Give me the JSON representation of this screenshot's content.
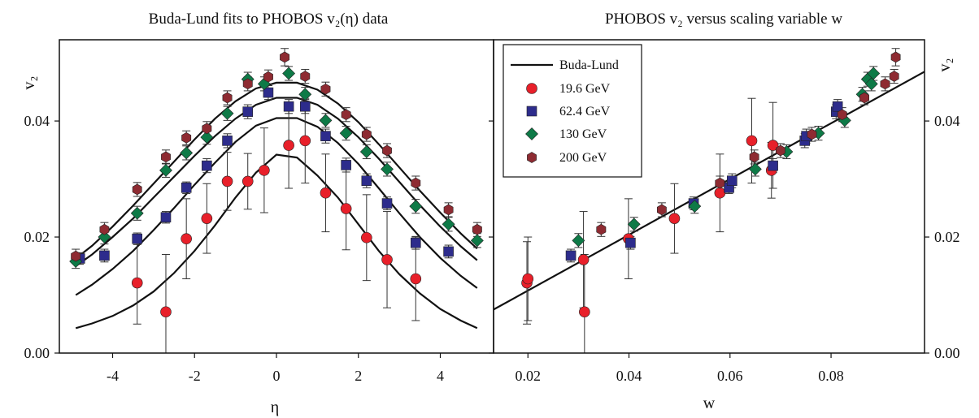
{
  "chart_data": [
    {
      "type": "scatter",
      "title": "Buda-Lund fits to PHOBOS v₂(η) data",
      "xlabel": "η",
      "ylabel": "v₂",
      "xlim": [
        -5.3,
        5.3
      ],
      "ylim": [
        0.0,
        0.054
      ],
      "x_ticks": [
        "-4",
        "-2",
        "0",
        "2",
        "4"
      ],
      "x_tick_values": [
        -4,
        -2,
        0,
        2,
        4
      ],
      "y_ticks": [
        "0.00",
        "0.02",
        "0.04"
      ],
      "y_tick_values": [
        0.0,
        0.02,
        0.04
      ],
      "grid": false,
      "fit_curves": [
        {
          "series": "19.6 GeV",
          "x": [
            -4.9,
            -4.5,
            -4,
            -3.5,
            -3,
            -2.5,
            -2,
            -1.5,
            -1,
            -0.5,
            0,
            0.5,
            1,
            1.5,
            2,
            2.5,
            3,
            3.5,
            4,
            4.5,
            4.9
          ],
          "y": [
            0.0043,
            0.0051,
            0.0064,
            0.0082,
            0.0106,
            0.0138,
            0.0176,
            0.022,
            0.0268,
            0.0311,
            0.0342,
            0.0337,
            0.0306,
            0.0268,
            0.0222,
            0.0176,
            0.0136,
            0.0103,
            0.0076,
            0.0056,
            0.0043
          ]
        },
        {
          "series": "62.4 GeV",
          "x": [
            -4.9,
            -4.5,
            -4,
            -3.5,
            -3,
            -2.5,
            -2,
            -1.5,
            -1,
            -0.5,
            0,
            0.5,
            1,
            1.5,
            2,
            2.5,
            3,
            3.5,
            4,
            4.5,
            4.9
          ],
          "y": [
            0.01,
            0.0118,
            0.0145,
            0.0176,
            0.0212,
            0.025,
            0.029,
            0.0328,
            0.0364,
            0.0392,
            0.0405,
            0.0405,
            0.039,
            0.0362,
            0.0326,
            0.0284,
            0.0241,
            0.02,
            0.0164,
            0.0133,
            0.0112
          ]
        },
        {
          "series": "130 GeV",
          "x": [
            -4.9,
            -4.5,
            -4,
            -3.5,
            -3,
            -2.5,
            -2,
            -1.5,
            -1,
            -0.5,
            0,
            0.5,
            1,
            1.5,
            2,
            2.5,
            3,
            3.5,
            4,
            4.5,
            4.9
          ],
          "y": [
            0.015,
            0.017,
            0.02,
            0.0232,
            0.0268,
            0.0304,
            0.034,
            0.0374,
            0.0404,
            0.0428,
            0.044,
            0.044,
            0.0428,
            0.0404,
            0.0372,
            0.0335,
            0.0295,
            0.0255,
            0.0218,
            0.0184,
            0.016
          ]
        },
        {
          "series": "200 GeV",
          "x": [
            -4.9,
            -4.5,
            -4,
            -3.5,
            -3,
            -2.5,
            -2,
            -1.5,
            -1,
            -0.5,
            0,
            0.5,
            1,
            1.5,
            2,
            2.5,
            3,
            3.5,
            4,
            4.5,
            4.9
          ],
          "y": [
            0.0163,
            0.0185,
            0.0218,
            0.0254,
            0.0292,
            0.033,
            0.0368,
            0.0404,
            0.0434,
            0.0456,
            0.0466,
            0.0466,
            0.0454,
            0.043,
            0.0398,
            0.036,
            0.032,
            0.028,
            0.0242,
            0.0206,
            0.018
          ]
        }
      ],
      "series": [
        {
          "name": "19.6 GeV",
          "marker": "circle",
          "color": "#e8202a",
          "x": [
            -3.4,
            -2.7,
            -2.2,
            -1.7,
            -1.2,
            -0.7,
            -0.3,
            0.3,
            0.7,
            1.2,
            1.7,
            2.2,
            2.7,
            3.4
          ],
          "y": [
            0.0121,
            0.0071,
            0.0197,
            0.0232,
            0.0296,
            0.0296,
            0.0315,
            0.0358,
            0.0366,
            0.0276,
            0.0249,
            0.0199,
            0.0161,
            0.0128
          ],
          "err": [
            0.0071,
            0.0099,
            0.0069,
            0.006,
            0.005,
            0.0048,
            0.0073,
            0.0074,
            0.0073,
            0.0067,
            0.0071,
            0.0074,
            0.0083,
            0.0072
          ]
        },
        {
          "name": "62.4 GeV",
          "marker": "square",
          "color": "#2d2c8c",
          "x": [
            -4.8,
            -4.2,
            -3.4,
            -2.7,
            -2.2,
            -1.7,
            -1.2,
            -0.7,
            -0.2,
            0.3,
            0.7,
            1.2,
            1.7,
            2.2,
            2.7,
            3.4,
            4.2
          ],
          "y": [
            0.0163,
            0.0168,
            0.0197,
            0.0234,
            0.0285,
            0.0323,
            0.0366,
            0.0416,
            0.0449,
            0.0425,
            0.0425,
            0.0374,
            0.0324,
            0.0297,
            0.0258,
            0.019,
            0.0175
          ],
          "err": [
            0.001,
            0.0011,
            0.001,
            0.001,
            0.001,
            0.0012,
            0.0012,
            0.0012,
            0.0012,
            0.0012,
            0.0012,
            0.0012,
            0.0012,
            0.0012,
            0.0011,
            0.0011,
            0.0011
          ]
        },
        {
          "name": "130 GeV",
          "marker": "diamond",
          "color": "#0e7a47",
          "x": [
            -4.9,
            -4.2,
            -3.4,
            -2.7,
            -2.2,
            -1.7,
            -1.2,
            -0.7,
            -0.3,
            0.3,
            0.7,
            1.2,
            1.7,
            2.2,
            2.7,
            3.4,
            4.2,
            4.9
          ],
          "y": [
            0.0158,
            0.02,
            0.0241,
            0.0315,
            0.0345,
            0.0372,
            0.0413,
            0.0472,
            0.0464,
            0.0482,
            0.0446,
            0.0401,
            0.0379,
            0.0347,
            0.0317,
            0.0253,
            0.0222,
            0.0194
          ],
          "err": [
            0.0012,
            0.0012,
            0.0012,
            0.0012,
            0.0012,
            0.0012,
            0.0012,
            0.0012,
            0.0012,
            0.0012,
            0.0012,
            0.0012,
            0.0012,
            0.0012,
            0.0012,
            0.0012,
            0.0012,
            0.0012
          ]
        },
        {
          "name": "200 GeV",
          "marker": "hexagon",
          "color": "#8e2b32",
          "x": [
            -4.9,
            -4.2,
            -3.4,
            -2.7,
            -2.2,
            -1.7,
            -1.2,
            -0.7,
            -0.2,
            0.2,
            0.7,
            1.2,
            1.7,
            2.2,
            2.7,
            3.4,
            4.2,
            4.9
          ],
          "y": [
            0.0167,
            0.0213,
            0.0282,
            0.0338,
            0.0371,
            0.0387,
            0.044,
            0.0464,
            0.0476,
            0.051,
            0.0477,
            0.0455,
            0.0411,
            0.0377,
            0.0349,
            0.0293,
            0.0247,
            0.0213
          ],
          "err": [
            0.0012,
            0.0012,
            0.0012,
            0.0012,
            0.0012,
            0.0012,
            0.0012,
            0.0012,
            0.0012,
            0.0015,
            0.0012,
            0.0012,
            0.0012,
            0.0012,
            0.0012,
            0.0012,
            0.0012,
            0.0012
          ]
        }
      ]
    },
    {
      "type": "scatter",
      "title": "PHOBOS v₂ versus scaling variable w",
      "xlabel": "w",
      "ylabel": "v₂",
      "xlim": [
        0.0132,
        0.0985
      ],
      "ylim": [
        0.0,
        0.054
      ],
      "x_ticks": [
        "0.02",
        "0.04",
        "0.06",
        "0.08"
      ],
      "x_tick_values": [
        0.02,
        0.04,
        0.06,
        0.08
      ],
      "y_ticks": [
        "0.00",
        "0.02",
        "0.04"
      ],
      "y_tick_values": [
        0.0,
        0.02,
        0.04
      ],
      "grid": false,
      "legend": {
        "position": "top-left",
        "entries": [
          "Buda-Lund",
          "19.6 GeV",
          "62.4 GeV",
          "130 GeV",
          "200 GeV"
        ]
      },
      "line": {
        "name": "Buda-Lund",
        "x": [
          0.0132,
          0.0985
        ],
        "y": [
          0.0075,
          0.0485
        ]
      },
      "series": [
        {
          "name": "19.6 GeV",
          "marker": "circle",
          "color": "#e8202a",
          "x": [
            0.0198,
            0.02,
            0.031,
            0.0312,
            0.0399,
            0.049,
            0.058,
            0.0643,
            0.0682,
            0.0685
          ],
          "y": [
            0.0121,
            0.0128,
            0.0161,
            0.0071,
            0.0197,
            0.0232,
            0.0276,
            0.0366,
            0.0315,
            0.0358
          ],
          "err": [
            0.0071,
            0.0072,
            0.0083,
            0.0099,
            0.0069,
            0.006,
            0.0067,
            0.0073,
            0.0048,
            0.0074
          ]
        },
        {
          "name": "62.4 GeV",
          "marker": "square",
          "color": "#2d2c8c",
          "x": [
            0.0285,
            0.0403,
            0.0528,
            0.0598,
            0.0604,
            0.0685,
            0.0748,
            0.0751,
            0.081,
            0.0813
          ],
          "y": [
            0.0168,
            0.019,
            0.0258,
            0.0285,
            0.0297,
            0.0323,
            0.0366,
            0.0374,
            0.0416,
            0.0425
          ],
          "err": [
            0.0011,
            0.0011,
            0.0011,
            0.001,
            0.0012,
            0.0012,
            0.0012,
            0.0012,
            0.0012,
            0.0012
          ]
        },
        {
          "name": "130 GeV",
          "marker": "diamond",
          "color": "#0e7a47",
          "x": [
            0.03,
            0.041,
            0.053,
            0.065,
            0.0712,
            0.0775,
            0.0827,
            0.0862,
            0.0872,
            0.088,
            0.0884
          ],
          "y": [
            0.0194,
            0.0222,
            0.0253,
            0.0317,
            0.0347,
            0.0379,
            0.0401,
            0.0446,
            0.0472,
            0.0464,
            0.0482
          ],
          "err": [
            0.0012,
            0.0012,
            0.0012,
            0.0012,
            0.0012,
            0.0012,
            0.0012,
            0.0012,
            0.0012,
            0.0012,
            0.0012
          ]
        },
        {
          "name": "200 GeV",
          "marker": "hexagon",
          "color": "#8e2b32",
          "x": [
            0.0345,
            0.0465,
            0.058,
            0.0648,
            0.07,
            0.0762,
            0.0822,
            0.0866,
            0.0907,
            0.0925,
            0.0928
          ],
          "y": [
            0.0213,
            0.0247,
            0.0293,
            0.0338,
            0.0349,
            0.0377,
            0.0411,
            0.044,
            0.0464,
            0.0477,
            0.051
          ],
          "err": [
            0.0012,
            0.0012,
            0.0012,
            0.0012,
            0.0012,
            0.0012,
            0.0012,
            0.0012,
            0.0012,
            0.0012,
            0.0015
          ]
        }
      ]
    }
  ]
}
